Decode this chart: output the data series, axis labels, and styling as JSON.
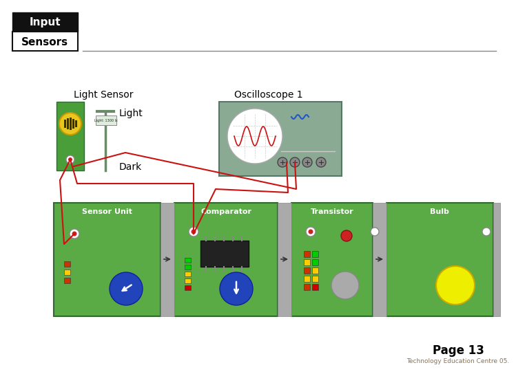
{
  "title_top": "Input",
  "title_bottom": "Sensors",
  "page_number": "Page 13",
  "footer_text": "Technology Education Centre 05.",
  "bg_color": "#ffffff",
  "header_box_color": "#000000",
  "header_text_color": "#ffffff",
  "header_bottom_bg": "#ffffff",
  "header_bottom_text_color": "#000000",
  "green_color": "#5a9e4a",
  "light_sensor_label": "Light Sensor",
  "oscilloscope_label": "Oscilloscope 1",
  "light_label": "Light",
  "dark_label": "Dark",
  "osc_bg": "#8aaa94",
  "osc_screen_bg": "#ffffff",
  "connector_color": "#aaaaaa",
  "red_line_color": "#cc1111",
  "sensor_green": "#4a9e3a",
  "module_labels": [
    "Sensor Unit",
    "Comparator",
    "Transistor",
    "Bulb"
  ]
}
